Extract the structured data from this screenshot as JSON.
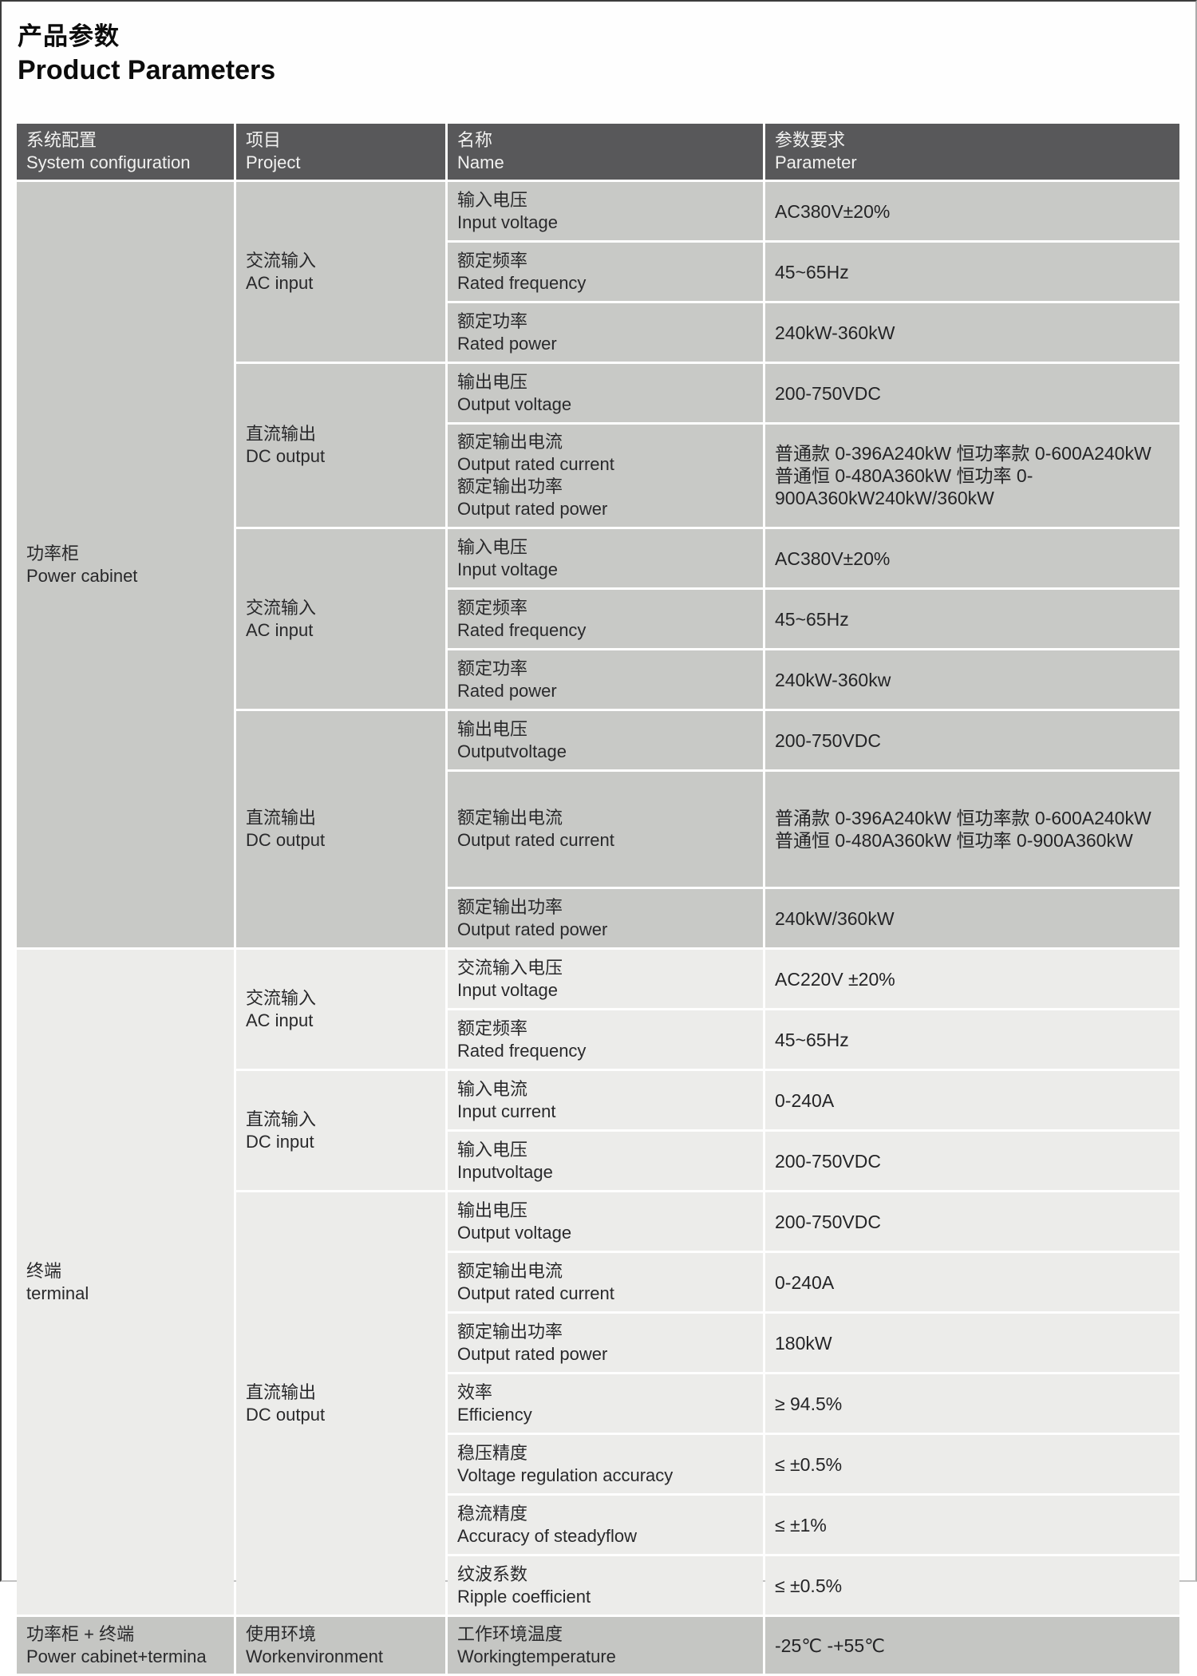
{
  "title": {
    "zh": "产品参数",
    "en": "Product Parameters"
  },
  "headers": [
    {
      "zh": "系统配置",
      "en": "System configuration"
    },
    {
      "zh": "项目",
      "en": "Project"
    },
    {
      "zh": "名称",
      "en": "Name"
    },
    {
      "zh": "参数要求",
      "en": "Parameter"
    }
  ],
  "sections": [
    {
      "zh": "功率柜",
      "en": "Power cabinet"
    },
    {
      "zh": "终端",
      "en": "terminal"
    }
  ],
  "projects": [
    {
      "zh": "交流输入",
      "en": "AC input"
    },
    {
      "zh": "直流输出",
      "en": "DC output"
    },
    {
      "zh": "交流输入",
      "en": "AC input"
    },
    {
      "zh": "直流输出",
      "en": "DC output"
    },
    {
      "zh": "交流输入",
      "en": "AC input"
    },
    {
      "zh": "直流输入",
      "en": "DC input"
    },
    {
      "zh": "直流输出",
      "en": "DC output"
    }
  ],
  "rows": [
    {
      "zh": "输入电压",
      "en": "Input voltage",
      "param": "AC380V±20%"
    },
    {
      "zh": "额定频率",
      "en": "Rated frequency",
      "param": "45~65Hz"
    },
    {
      "zh": "额定功率",
      "en": "Rated power",
      "param": "240kW-360kW"
    },
    {
      "zh": "输出电压",
      "en": "Output voltage",
      "param": "200-750VDC"
    },
    {
      "zh": "额定输出电流",
      "en": "Output rated current",
      "zh2": "额定输出功率",
      "en2": "Output rated power",
      "param": "普通款 0-396A240kW 恒功率款 0-600A240kW 普通恒 0-480A360kW 恒功率 0-900A360kW240kW/360kW"
    },
    {
      "zh": "输入电压",
      "en": "Input voltage",
      "param": "AC380V±20%"
    },
    {
      "zh": "额定频率",
      "en": "Rated frequency",
      "param": "45~65Hz"
    },
    {
      "zh": "额定功率",
      "en": "Rated power",
      "param": "240kW-360kw"
    },
    {
      "zh": "输出电压",
      "en": "Outputvoltage",
      "param": "200-750VDC"
    },
    {
      "zh": "额定输出电流",
      "en": "Output rated current",
      "param": "普涌款 0-396A240kW 恒功率款 0-600A240kW 普通恒 0-480A360kW 恒功率 0-900A360kW"
    },
    {
      "zh": "额定输出功率",
      "en": "Output rated power",
      "param": "240kW/360kW"
    },
    {
      "zh": "交流输入电压",
      "en": "Input voltage",
      "param": "AC220V ±20%"
    },
    {
      "zh": "额定频率",
      "en": "Rated frequency",
      "param": "45~65Hz"
    },
    {
      "zh": "输入电流",
      "en": "Input current",
      "param": "0-240A"
    },
    {
      "zh": "输入电压",
      "en": "Inputvoltage",
      "param": "200-750VDC"
    },
    {
      "zh": "输出电压",
      "en": "Output voltage",
      "param": "200-750VDC"
    },
    {
      "zh": "额定输出电流",
      "en": "Output rated current",
      "param": "0-240A"
    },
    {
      "zh": "额定输出功率",
      "en": "Output rated power",
      "param": "180kW"
    },
    {
      "zh": "效率",
      "en": "Efficiency",
      "param": "≥ 94.5%"
    },
    {
      "zh": "稳压精度",
      "en": "Voltage regulation accuracy",
      "param": "≤ ±0.5%"
    },
    {
      "zh": "稳流精度",
      "en": "Accuracy of steadyflow",
      "param": "≤ ±1%"
    },
    {
      "zh": "纹波系数",
      "en": "Ripple coefficient",
      "param": "≤ ±0.5%"
    }
  ],
  "bottom": {
    "config_zh": "功率柜 + 终端",
    "config_en": "Power cabinet+termina",
    "project_zh": "使用环境",
    "project_en": "Workenvironment",
    "name_zh": "工作环境温度",
    "name_en": "Workingtemperature",
    "param": "-25℃ -+55℃"
  }
}
